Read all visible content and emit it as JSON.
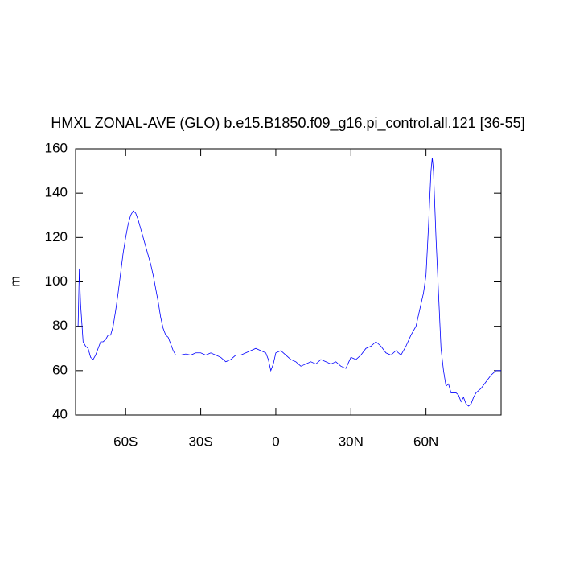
{
  "chart_data": {
    "type": "line",
    "title": "HMXL ZONAL-AVE (GLO) b.e15.B1850.f09_g16.pi_control.all.121 [36-55]",
    "y_label": "m",
    "xlim": [
      -80,
      90
    ],
    "ylim": [
      40,
      160
    ],
    "xticks": [
      {
        "value": -60,
        "label": "60S"
      },
      {
        "value": -30,
        "label": "30S"
      },
      0,
      {
        "value": 30,
        "label": "30N"
      },
      {
        "value": 60,
        "label": "60N"
      }
    ],
    "yticks": [
      40,
      60,
      80,
      100,
      120,
      140,
      160
    ],
    "series": [
      {
        "color": "#0000ff",
        "x": [
          -79,
          -78.5,
          -78,
          -77,
          -76,
          -75,
          -74,
          -73,
          -72,
          -71,
          -70,
          -69,
          -68,
          -67,
          -66,
          -65,
          -64,
          -63,
          -62,
          -61,
          -60,
          -59,
          -58,
          -57,
          -56,
          -55,
          -54,
          -53,
          -52,
          -51,
          -50,
          -49,
          -48,
          -47,
          -46,
          -45,
          -44,
          -43,
          -42,
          -41,
          -40,
          -38,
          -36,
          -34,
          -32,
          -30,
          -28,
          -26,
          -24,
          -22,
          -20,
          -18,
          -16,
          -14,
          -12,
          -10,
          -8,
          -6,
          -4,
          -3,
          -2,
          -1,
          0,
          2,
          4,
          6,
          8,
          10,
          12,
          14,
          16,
          18,
          20,
          22,
          24,
          26,
          28,
          30,
          32,
          34,
          36,
          38,
          40,
          42,
          44,
          46,
          48,
          50,
          52,
          54,
          56,
          58,
          59,
          60,
          61,
          62,
          62.5,
          63,
          64,
          65,
          66,
          67,
          68,
          69,
          70,
          72,
          73,
          74,
          75,
          76,
          77,
          78,
          79,
          80,
          82,
          84,
          86,
          88,
          90
        ],
        "values": [
          80,
          106,
          90,
          73,
          71,
          70,
          66,
          65,
          67,
          70,
          73,
          73,
          74,
          76,
          76,
          80,
          87,
          95,
          104,
          113,
          120,
          126,
          130,
          132,
          131,
          128,
          124,
          120,
          116,
          112,
          108,
          103,
          97,
          91,
          84,
          79,
          76,
          75,
          72,
          69,
          67,
          67,
          67.5,
          67,
          68,
          68,
          67,
          68,
          67,
          66,
          64,
          65,
          67,
          67,
          68,
          69,
          70,
          69,
          68,
          65,
          60,
          63,
          68,
          69,
          67,
          65,
          64,
          62,
          63,
          64,
          63,
          65,
          64,
          63,
          64,
          62,
          61,
          66,
          65,
          67,
          70,
          71,
          73,
          71,
          68,
          67,
          69,
          67,
          71,
          76,
          80,
          90,
          95,
          103,
          125,
          150,
          156,
          150,
          120,
          95,
          70,
          60,
          53,
          54,
          50,
          50,
          49,
          46,
          48,
          45,
          44,
          45,
          48,
          50,
          52,
          55,
          58,
          60,
          60
        ]
      }
    ]
  }
}
